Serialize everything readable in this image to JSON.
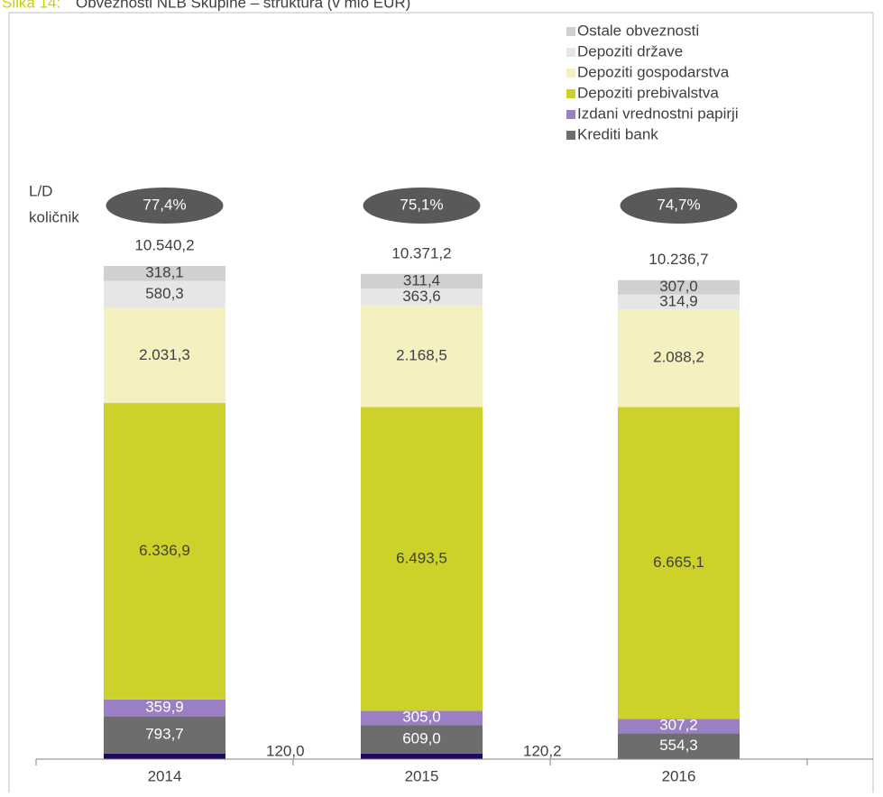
{
  "chart_data": {
    "type": "stacked_bar",
    "title_prefix": "Slika 14:",
    "title": "Obveznosti NLB Skupine – struktura (v mio EUR)",
    "ratio_label": [
      "L/D",
      "količnik"
    ],
    "categories": [
      "2014",
      "2015",
      "2016"
    ],
    "series": [
      {
        "color": "#1f0a5e",
        "values": [
          120.0,
          120.2,
          null
        ],
        "value_labels": [
          "120,0",
          "120,2",
          null
        ]
      },
      {
        "name": "Krediti bank",
        "color": "#6d6d6d",
        "values": [
          793.7,
          609.0,
          554.3
        ],
        "value_labels": [
          "793,7",
          "609,0",
          "554,3"
        ]
      },
      {
        "name": "Izdani vrednostni papirji",
        "color": "#9b7fc4",
        "values": [
          359.9,
          305.0,
          307.2
        ],
        "value_labels": [
          "359,9",
          "305,0",
          "307,2"
        ]
      },
      {
        "name": "Depoziti prebivalstva",
        "color": "#cdd22a",
        "values": [
          6336.9,
          6493.5,
          6665.1
        ],
        "value_labels": [
          "6.336,9",
          "6.493,5",
          "6.665,1"
        ]
      },
      {
        "name": "Depoziti gospodarstva",
        "color": "#f5f0c0",
        "values": [
          2031.3,
          2168.5,
          2088.2
        ],
        "value_labels": [
          "2.031,3",
          "2.168,5",
          "2.088,2"
        ]
      },
      {
        "name": "Depoziti države",
        "color": "#e6e6e6",
        "values": [
          580.3,
          363.6,
          314.9
        ],
        "value_labels": [
          "580,3",
          "363,6",
          "314,9"
        ]
      },
      {
        "name": "Ostale obveznosti",
        "color": "#d0d0d0",
        "values": [
          318.1,
          311.4,
          307.0
        ],
        "value_labels": [
          "318,1",
          "311,4",
          "307,0"
        ]
      }
    ],
    "totals": [
      10540.2,
      10371.2,
      10236.7
    ],
    "total_labels": [
      "10.540,2",
      "10.371,2",
      "10.236,7"
    ],
    "ld_ratio": [
      77.4,
      75.1,
      74.7
    ],
    "ld_ratio_labels": [
      "77,4%",
      "75,1%",
      "74,7%"
    ]
  }
}
